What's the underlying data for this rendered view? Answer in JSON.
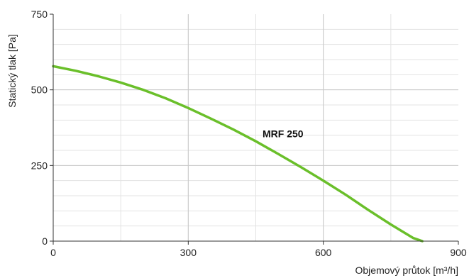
{
  "chart_data": {
    "type": "line",
    "title": "",
    "xlabel": "Objemový průtok [m³/h]",
    "ylabel": "Statický tlak [Pa]",
    "xlim": [
      0,
      900
    ],
    "ylim": [
      0,
      750
    ],
    "x_ticks": [
      0,
      300,
      600,
      900
    ],
    "y_ticks": [
      0,
      250,
      500,
      750
    ],
    "x_tick_labels": [
      "0",
      "300",
      "600",
      "900"
    ],
    "y_tick_labels": [
      "0",
      "250",
      "500",
      "750"
    ],
    "grid": true,
    "legend": "none",
    "series": [
      {
        "name": "MRF 250",
        "color": "#6abf2a",
        "x": [
          0,
          50,
          100,
          150,
          200,
          250,
          300,
          350,
          400,
          450,
          500,
          550,
          600,
          650,
          700,
          750,
          800,
          820
        ],
        "y": [
          578,
          563,
          545,
          524,
          500,
          472,
          440,
          405,
          369,
          330,
          288,
          245,
          200,
          153,
          103,
          55,
          10,
          0
        ]
      }
    ],
    "annotations": [
      {
        "text": "MRF 250",
        "x": 465,
        "y": 355
      }
    ]
  }
}
